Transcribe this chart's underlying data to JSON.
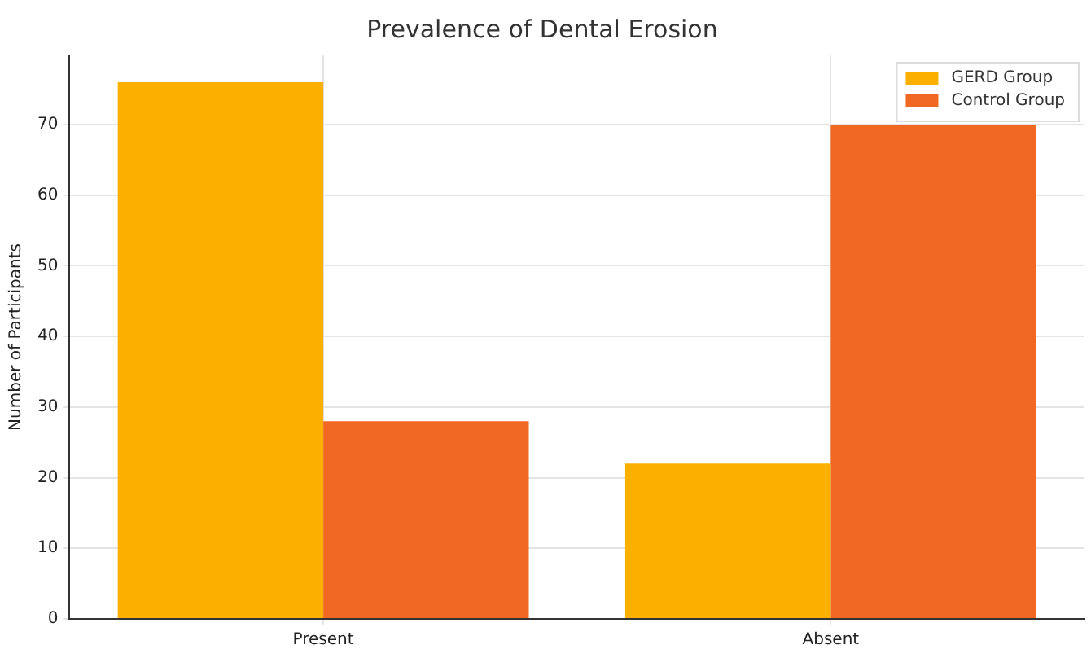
{
  "chart_data": {
    "type": "bar",
    "title": "Prevalence of Dental Erosion",
    "ylabel": "Number of Participants",
    "categories": [
      "Present",
      "Absent"
    ],
    "series": [
      {
        "name": "GERD Group",
        "color": "#fbb000",
        "values": [
          76,
          22
        ]
      },
      {
        "name": "Control Group",
        "color": "#f06822",
        "values": [
          28,
          70
        ]
      }
    ],
    "ylim": [
      0,
      79.8
    ],
    "yticks": [
      0,
      10,
      20,
      30,
      40,
      50,
      60,
      70
    ],
    "grid": true,
    "legend": "top right"
  }
}
